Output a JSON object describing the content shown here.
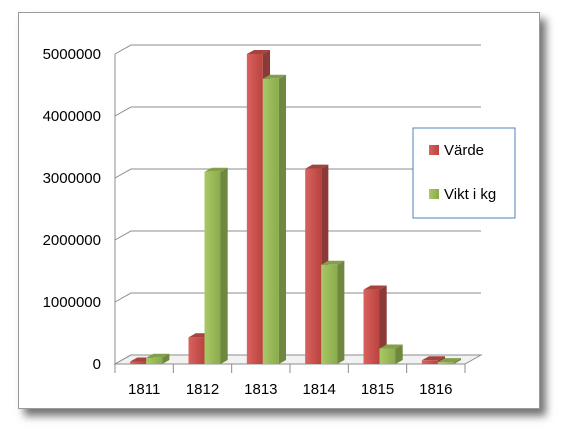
{
  "chart_data": {
    "type": "bar",
    "categories": [
      "1811",
      "1812",
      "1813",
      "1814",
      "1815",
      "1816"
    ],
    "series": [
      {
        "name": "Värde",
        "color": "#c0504d",
        "values": [
          40000,
          430000,
          5000000,
          3150000,
          1200000,
          60000
        ]
      },
      {
        "name": "Vikt i kg",
        "color": "#9bbb59",
        "values": [
          100000,
          3100000,
          4600000,
          1600000,
          250000,
          30000
        ]
      }
    ],
    "ylim": [
      0,
      5000000
    ],
    "yticks": [
      "0",
      "1000000",
      "2000000",
      "3000000",
      "4000000",
      "5000000"
    ],
    "grid": true,
    "legend_position": "right",
    "title": "",
    "xlabel": "",
    "ylabel": ""
  }
}
